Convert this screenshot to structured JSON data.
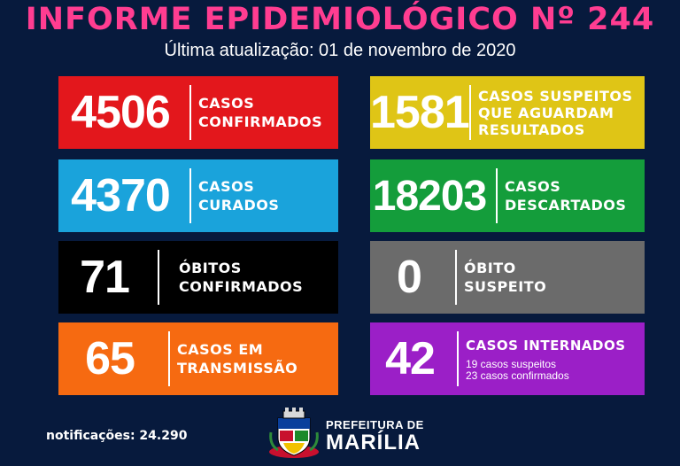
{
  "header": {
    "title": "INFORME EPIDEMIOLÓGICO Nº 244",
    "subtitle": "Última atualização: 01 de novembro de 2020"
  },
  "cards": [
    {
      "value": "4506",
      "line1": "CASOS",
      "line2": "CONFIRMADOS",
      "color": "#e3171c"
    },
    {
      "value": "1581",
      "line1": "CASOS SUSPEITOS",
      "line2": "QUE AGUARDAM",
      "line3": "RESULTADOS",
      "color": "#dfc516"
    },
    {
      "value": "4370",
      "line1": "CASOS",
      "line2": "CURADOS",
      "color": "#1aa3db"
    },
    {
      "value": "18203",
      "line1": "CASOS",
      "line2": "DESCARTADOS",
      "color": "#149d3b"
    },
    {
      "value": "71",
      "line1": "ÓBITOS",
      "line2": "CONFIRMADOS",
      "color": "#000000"
    },
    {
      "value": "0",
      "line1": "ÓBITO",
      "line2": "SUSPEITO",
      "color": "#6b6b6b"
    },
    {
      "value": "65",
      "line1": "CASOS EM",
      "line2": "TRANSMISSÃO",
      "color": "#f66a11"
    },
    {
      "value": "42",
      "line1": "CASOS INTERNADOS",
      "sub1": "19 casos suspeitos",
      "sub2": "23 casos confirmados",
      "color": "#9b1fc7"
    }
  ],
  "footer": {
    "notifications": "notificações: 24.290",
    "pref_line1": "PREFEITURA DE",
    "pref_line2": "MARÍLIA"
  }
}
